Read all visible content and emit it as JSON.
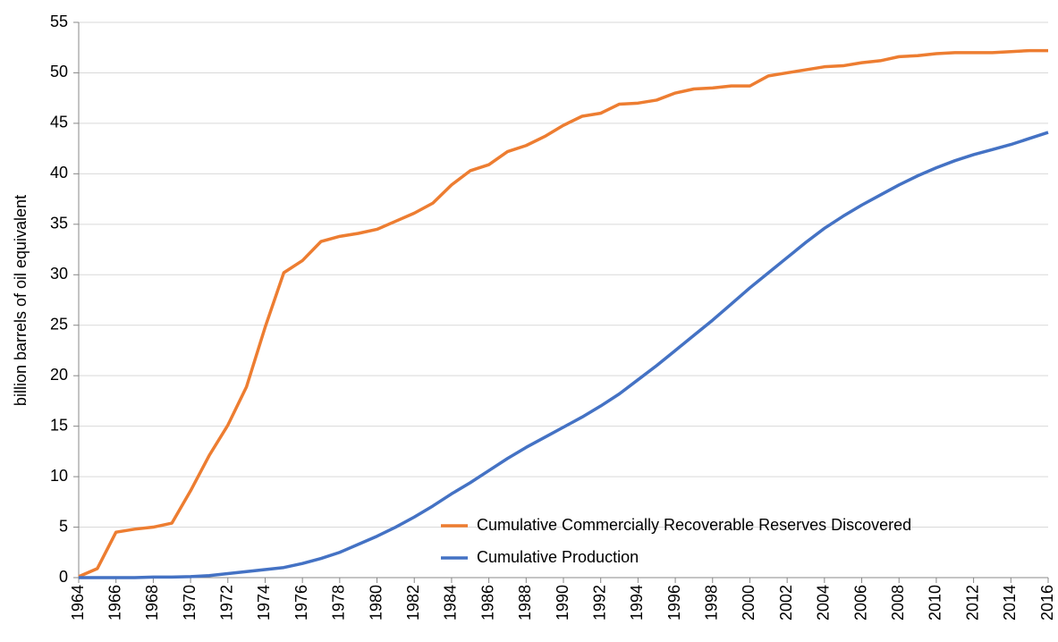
{
  "chart_data": {
    "type": "line",
    "ylabel": "billion barrels of oil equivalent",
    "x": [
      1964,
      1965,
      1966,
      1967,
      1968,
      1969,
      1970,
      1971,
      1972,
      1973,
      1974,
      1975,
      1976,
      1977,
      1978,
      1979,
      1980,
      1981,
      1982,
      1983,
      1984,
      1985,
      1986,
      1987,
      1988,
      1989,
      1990,
      1991,
      1992,
      1993,
      1994,
      1995,
      1996,
      1997,
      1998,
      1999,
      2000,
      2001,
      2002,
      2003,
      2004,
      2005,
      2006,
      2007,
      2008,
      2009,
      2010,
      2011,
      2012,
      2013,
      2014,
      2015,
      2016
    ],
    "series": [
      {
        "name": "Cumulative Commercially Recoverable Reserves Discovered",
        "color": "#ed7d31",
        "values": [
          0.1,
          0.9,
          4.5,
          4.8,
          5.0,
          5.4,
          8.6,
          12.1,
          15.1,
          18.9,
          24.8,
          30.2,
          31.4,
          33.3,
          33.8,
          34.1,
          34.5,
          35.3,
          36.1,
          37.1,
          38.9,
          40.3,
          40.9,
          42.2,
          42.8,
          43.7,
          44.8,
          45.7,
          46.0,
          46.9,
          47.0,
          47.3,
          48.0,
          48.4,
          48.5,
          48.7,
          48.7,
          49.7,
          50.0,
          50.3,
          50.6,
          50.7,
          51.0,
          51.2,
          51.6,
          51.7,
          51.9,
          52.0,
          52.0,
          52.0,
          52.1,
          52.2,
          52.2
        ]
      },
      {
        "name": "Cumulative Production",
        "color": "#4472c4",
        "values": [
          0,
          0,
          0,
          0,
          0.05,
          0.05,
          0.1,
          0.2,
          0.4,
          0.6,
          0.8,
          1.0,
          1.4,
          1.9,
          2.5,
          3.3,
          4.1,
          5.0,
          6.0,
          7.1,
          8.3,
          9.4,
          10.6,
          11.8,
          12.9,
          13.9,
          14.9,
          15.9,
          17.0,
          18.2,
          19.6,
          21.0,
          22.5,
          24.0,
          25.5,
          27.1,
          28.7,
          30.2,
          31.7,
          33.2,
          34.6,
          35.8,
          36.9,
          37.9,
          38.9,
          39.8,
          40.6,
          41.3,
          41.9,
          42.4,
          42.9,
          43.5,
          44.1
        ]
      }
    ],
    "xlim": [
      1964,
      2016
    ],
    "xticks": [
      1964,
      1966,
      1968,
      1970,
      1972,
      1974,
      1976,
      1978,
      1980,
      1982,
      1984,
      1986,
      1988,
      1990,
      1992,
      1994,
      1996,
      1998,
      2000,
      2002,
      2004,
      2006,
      2008,
      2010,
      2012,
      2014,
      2016
    ],
    "ylim": [
      0,
      55
    ],
    "yticks": [
      0,
      5,
      10,
      15,
      20,
      25,
      30,
      35,
      40,
      45,
      50,
      55
    ],
    "grid": true,
    "legend": "lower right"
  }
}
